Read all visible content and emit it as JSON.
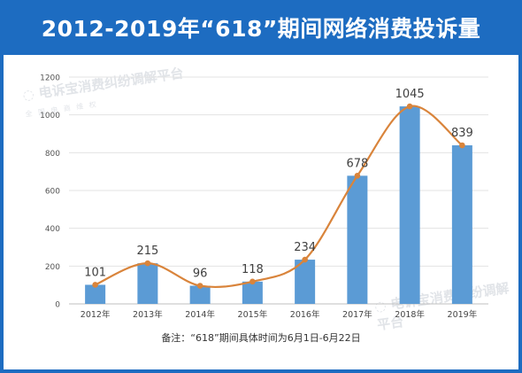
{
  "title": "2012-2019年“618”期间网络消费投诉量",
  "footnote": "备注：“618”期间具体时间为6月1日-6月22日",
  "colors": {
    "banner": "#1d6cc1",
    "bar": "#5b9bd5",
    "line": "#d9843b",
    "marker": "#d9843b"
  },
  "chart_data": {
    "type": "bar",
    "categories": [
      "2012年",
      "2013年",
      "2014年",
      "2015年",
      "2016年",
      "2017年",
      "2018年",
      "2019年"
    ],
    "values": [
      101,
      215,
      96,
      118,
      234,
      678,
      1045,
      839
    ],
    "overlay_line": true,
    "data_labels": [
      "101",
      "215",
      "96",
      "118",
      "234",
      "678",
      "1045",
      "839"
    ],
    "yticks": [
      "0",
      "200",
      "400",
      "600",
      "800",
      "1000",
      "1200"
    ],
    "ylim": [
      0,
      1200
    ],
    "grid": true,
    "legend": "none"
  }
}
